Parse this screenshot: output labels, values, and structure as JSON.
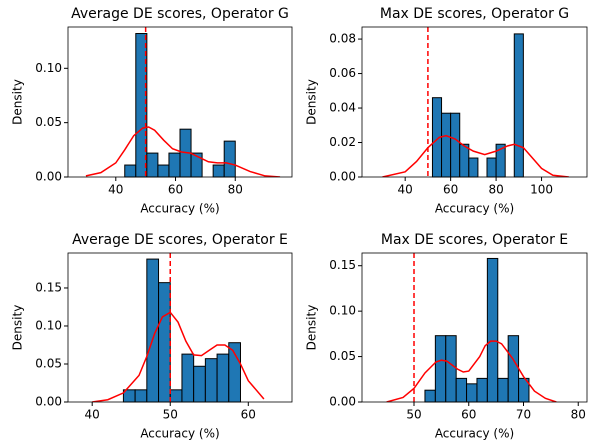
{
  "chart_data": [
    {
      "type": "histogram",
      "title": "Average DE scores, Operator G",
      "xlabel": "Accuracy (%)",
      "ylabel": "Density",
      "bins": [
        43,
        46.7,
        50.4,
        54.1,
        57.8,
        61.5,
        65.2,
        68.9,
        72.6,
        76.3,
        80
      ],
      "values": [
        0.011,
        0.132,
        0.022,
        0.011,
        0.022,
        0.044,
        0.022,
        0.0,
        0.011,
        0.033
      ],
      "color": "#1f77b4",
      "kde": {
        "x": [
          30,
          35,
          40,
          43,
          46,
          49,
          51,
          53,
          56,
          59,
          62,
          65,
          68,
          71,
          74,
          77,
          80,
          85,
          90,
          95
        ],
        "values": [
          0.001,
          0.004,
          0.013,
          0.025,
          0.038,
          0.045,
          0.046,
          0.043,
          0.034,
          0.026,
          0.023,
          0.022,
          0.018,
          0.014,
          0.013,
          0.013,
          0.011,
          0.005,
          0.001,
          0.0
        ],
        "color": "#ff0000"
      },
      "vline": {
        "x": 50,
        "color": "#ff0000"
      },
      "xlim": [
        24,
        99
      ],
      "ylim": [
        0,
        0.138
      ],
      "xticks": [
        40,
        60,
        80
      ],
      "yticks": [
        {
          "value": 0,
          "label": "0.00"
        },
        {
          "value": 0.05,
          "label": "0.05"
        },
        {
          "value": 0.1,
          "label": "0.10"
        }
      ]
    },
    {
      "type": "histogram",
      "title": "Max DE scores, Operator G",
      "xlabel": "Accuracy (%)",
      "ylabel": "Density",
      "bins": [
        52,
        56,
        60,
        64,
        68,
        72,
        76,
        80,
        84,
        88,
        92
      ],
      "values": [
        0.046,
        0.037,
        0.037,
        0.019,
        0.011,
        0.0,
        0.011,
        0.019,
        0.0,
        0.083
      ],
      "color": "#1f77b4",
      "kde": {
        "x": [
          30,
          40,
          45,
          50,
          55,
          58,
          62,
          66,
          70,
          75,
          80,
          85,
          88,
          92,
          96,
          100,
          105,
          112
        ],
        "values": [
          0.0,
          0.003,
          0.009,
          0.017,
          0.023,
          0.024,
          0.022,
          0.018,
          0.015,
          0.013,
          0.015,
          0.018,
          0.019,
          0.017,
          0.011,
          0.005,
          0.001,
          0.0
        ],
        "color": "#ff0000"
      },
      "vline": {
        "x": 50,
        "color": "#ff0000"
      },
      "xlim": [
        21,
        120
      ],
      "ylim": [
        0,
        0.087
      ],
      "xticks": [
        40,
        60,
        80,
        100
      ],
      "yticks": [
        {
          "value": 0,
          "label": "0.00"
        },
        {
          "value": 0.02,
          "label": "0.02"
        },
        {
          "value": 0.04,
          "label": "0.04"
        },
        {
          "value": 0.06,
          "label": "0.06"
        },
        {
          "value": 0.08,
          "label": "0.08"
        }
      ]
    },
    {
      "type": "histogram",
      "title": "Average DE scores, Operator E",
      "xlabel": "Accuracy (%)",
      "ylabel": "Density",
      "bins": [
        44,
        45.5,
        47,
        48.5,
        50,
        51.5,
        53,
        54.5,
        56,
        57.5,
        59
      ],
      "values": [
        0.016,
        0.016,
        0.188,
        0.157,
        0.016,
        0.063,
        0.047,
        0.057,
        0.063,
        0.078
      ],
      "color": "#1f77b4",
      "kde": {
        "x": [
          40,
          42,
          44,
          46,
          47,
          48,
          49,
          50,
          51,
          52,
          53,
          54,
          55,
          56,
          57,
          58,
          59,
          60,
          62
        ],
        "values": [
          0.0,
          0.003,
          0.012,
          0.035,
          0.06,
          0.09,
          0.112,
          0.118,
          0.105,
          0.08,
          0.062,
          0.061,
          0.068,
          0.075,
          0.075,
          0.068,
          0.05,
          0.028,
          0.004
        ],
        "color": "#ff0000"
      },
      "vline": {
        "x": 50,
        "color": "#ff0000"
      },
      "xlim": [
        36.9,
        65.6
      ],
      "ylim": [
        0,
        0.196
      ],
      "xticks": [
        40,
        50,
        60
      ],
      "yticks": [
        {
          "value": 0,
          "label": "0.00"
        },
        {
          "value": 0.05,
          "label": "0.05"
        },
        {
          "value": 0.1,
          "label": "0.10"
        },
        {
          "value": 0.15,
          "label": "0.15"
        }
      ]
    },
    {
      "type": "histogram",
      "title": "Max DE scores, Operator E",
      "xlabel": "Accuracy (%)",
      "ylabel": "Density",
      "bins": [
        52,
        53.9,
        55.8,
        57.7,
        59.6,
        61.5,
        63.4,
        65.3,
        67.2,
        69.1,
        71
      ],
      "values": [
        0.013,
        0.073,
        0.073,
        0.026,
        0.02,
        0.026,
        0.158,
        0.026,
        0.073,
        0.026
      ],
      "color": "#1f77b4",
      "kde": {
        "x": [
          45,
          48,
          50,
          52,
          54,
          55,
          56,
          58,
          59,
          60,
          62,
          63,
          64,
          65,
          66,
          68,
          70,
          72,
          74,
          76
        ],
        "values": [
          0.0,
          0.005,
          0.015,
          0.032,
          0.044,
          0.046,
          0.045,
          0.036,
          0.033,
          0.034,
          0.05,
          0.062,
          0.067,
          0.067,
          0.064,
          0.048,
          0.028,
          0.012,
          0.004,
          0.0
        ],
        "color": "#ff0000"
      },
      "vline": {
        "x": 50,
        "color": "#ff0000"
      },
      "xlim": [
        40.5,
        81.6
      ],
      "ylim": [
        0,
        0.164
      ],
      "xticks": [
        50,
        60,
        70,
        80
      ],
      "yticks": [
        {
          "value": 0,
          "label": "0.00"
        },
        {
          "value": 0.05,
          "label": "0.05"
        },
        {
          "value": 0.1,
          "label": "0.10"
        },
        {
          "value": 0.15,
          "label": "0.15"
        }
      ]
    }
  ]
}
